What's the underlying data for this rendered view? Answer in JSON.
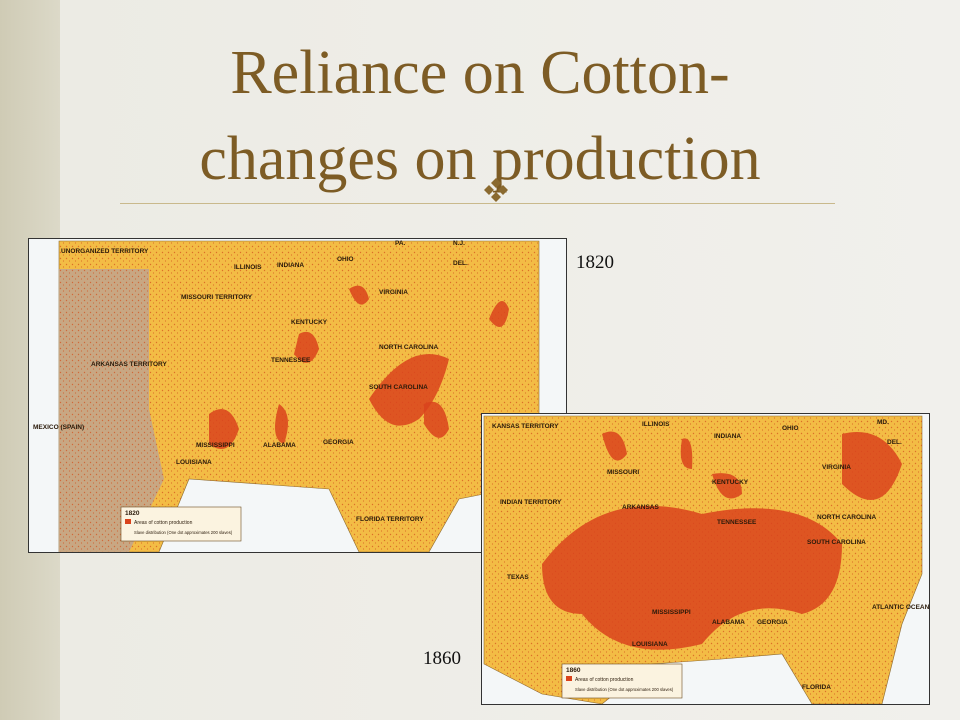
{
  "title": {
    "lines": [
      "Reliance on Cotton-",
      "changes on production"
    ]
  },
  "maps": [
    {
      "year": "1820",
      "labels": [
        "UNORGANIZED TERRITORY",
        "ILLINOIS",
        "INDIANA",
        "OHIO",
        "PA.",
        "N.J.",
        "DEL.",
        "MISSOURI TERRITORY",
        "KENTUCKY",
        "VIRGINIA",
        "TENNESSEE",
        "NORTH CAROLINA",
        "ARKANSAS TERRITORY",
        "SOUTH CAROLINA",
        "MISSISSIPPI",
        "ALABAMA",
        "GEORGIA",
        "MEXICO (SPAIN)",
        "LOUISIANA",
        "FLORIDA TERRITORY"
      ],
      "legend": [
        "1820",
        "Areas of cotton production",
        "Slave distribution (One dot approximates 200 slaves)"
      ]
    },
    {
      "year": "1860",
      "labels": [
        "KANSAS TERRITORY",
        "ILLINOIS",
        "INDIANA",
        "OHIO",
        "MD.",
        "DEL.",
        "MISSOURI",
        "KENTUCKY",
        "VIRGINIA",
        "INDIAN TERRITORY",
        "ARKANSAS",
        "TENNESSEE",
        "NORTH CAROLINA",
        "SOUTH CAROLINA",
        "TEXAS",
        "MISSISSIPPI",
        "ALABAMA",
        "GEORGIA",
        "LOUISIANA",
        "ATLANTIC OCEAN",
        "FLORIDA"
      ],
      "legend": [
        "1860",
        "Areas of cotton production",
        "Slave distribution (One dot approximates 200 slaves)"
      ]
    }
  ]
}
